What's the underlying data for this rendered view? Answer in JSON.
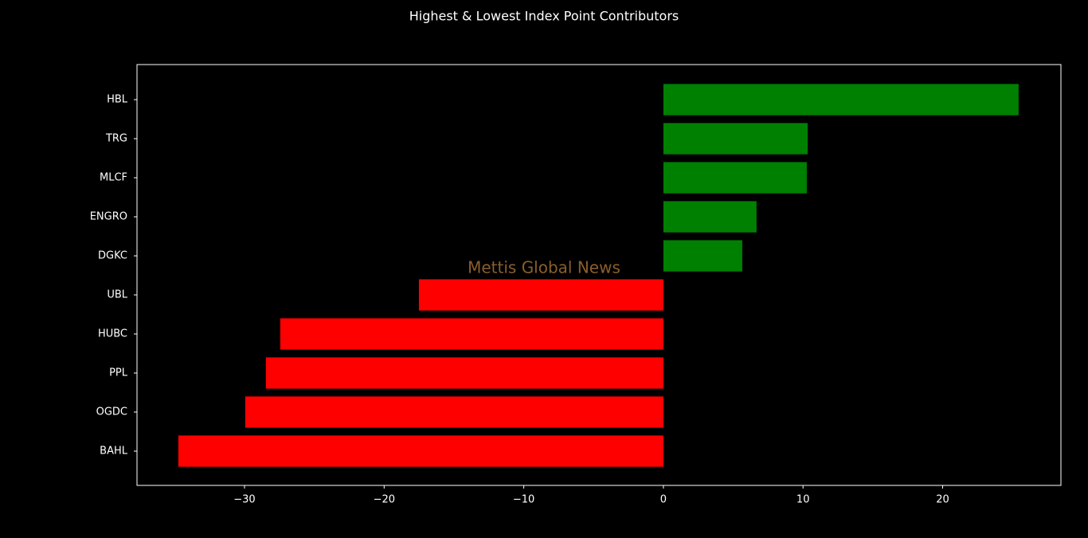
{
  "chart_data": {
    "type": "barh",
    "title": "Highest & Lowest Index Point Contributors",
    "watermark": "Mettis Global News",
    "categories": [
      "HBL",
      "TRG",
      "MLCF",
      "ENGRO",
      "DGKC",
      "UBL",
      "HUBC",
      "PPL",
      "OGDC",
      "BAHL"
    ],
    "values": [
      25.44,
      10.33,
      10.27,
      6.67,
      5.65,
      -17.51,
      -27.44,
      -28.47,
      -29.95,
      -34.74
    ],
    "colors": [
      "#008000",
      "#008000",
      "#008000",
      "#008000",
      "#008000",
      "#ff0000",
      "#ff0000",
      "#ff0000",
      "#ff0000",
      "#ff0000"
    ],
    "xlim": [
      -37.7,
      28.47
    ],
    "xticks": [
      {
        "value": -30,
        "label": "−30"
      },
      {
        "value": -20,
        "label": "−20"
      },
      {
        "value": -10,
        "label": "−10"
      },
      0,
      10,
      20
    ]
  }
}
